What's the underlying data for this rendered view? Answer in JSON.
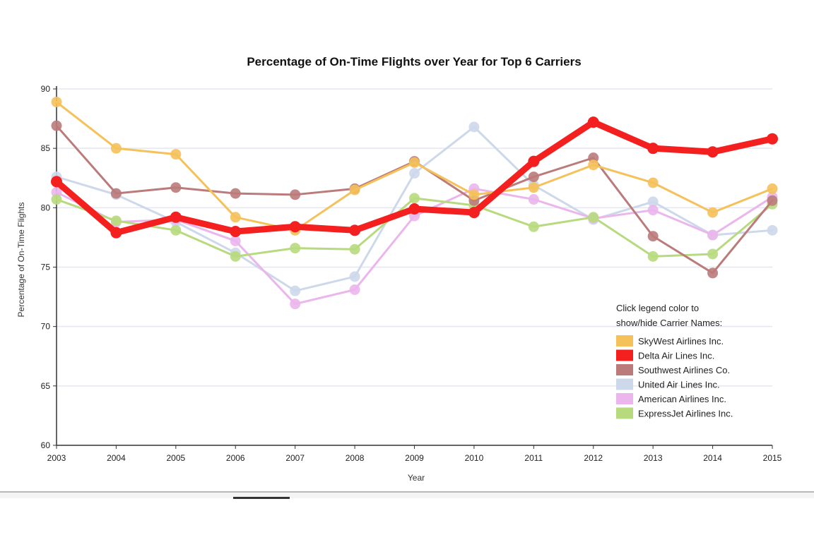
{
  "chart_data": {
    "type": "line",
    "title": "Percentage of On-Time Flights over Year for Top 6 Carriers",
    "xlabel": "Year",
    "ylabel": "Percentage of On-Time Flights",
    "x": [
      2003,
      2004,
      2005,
      2006,
      2007,
      2008,
      2009,
      2010,
      2011,
      2012,
      2013,
      2014,
      2015
    ],
    "x_tick_labels": [
      "2003",
      "2004",
      "2005",
      "2006",
      "2007",
      "2008",
      "2009",
      "2010",
      "2011",
      "2012",
      "2013",
      "2014",
      "2015"
    ],
    "ylim": [
      60,
      90
    ],
    "y_ticks": [
      60,
      65,
      70,
      75,
      80,
      85,
      90
    ],
    "y_tick_labels": [
      "60",
      "65",
      "70",
      "75",
      "80",
      "85",
      "90"
    ],
    "grid": true,
    "legend_position": "bottom-right",
    "legend_title_line1": "Click legend color to",
    "legend_title_line2": "show/hide Carrier Names:",
    "series": [
      {
        "name": "United Air Lines Inc.",
        "color": "#cdd8ea",
        "emphasis": false,
        "values": [
          82.6,
          81.1,
          78.8,
          76.2,
          73.0,
          74.2,
          82.9,
          86.8,
          81.9,
          79.0,
          80.5,
          77.7,
          78.1
        ]
      },
      {
        "name": "American Airlines Inc.",
        "color": "#eab6ec",
        "emphasis": false,
        "values": [
          81.3,
          78.8,
          79.0,
          77.2,
          71.9,
          73.1,
          79.3,
          81.6,
          80.7,
          79.1,
          79.8,
          77.7,
          80.9
        ]
      },
      {
        "name": "ExpressJet Airlines Inc.",
        "color": "#b8da7e",
        "emphasis": false,
        "values": [
          80.7,
          78.9,
          78.1,
          75.9,
          76.6,
          76.5,
          80.8,
          80.2,
          78.4,
          79.2,
          75.9,
          76.1,
          80.3
        ]
      },
      {
        "name": "Southwest Airlines Co.",
        "color": "#bb7b7b",
        "emphasis": false,
        "values": [
          86.9,
          81.2,
          81.7,
          81.2,
          81.1,
          81.6,
          83.9,
          80.6,
          82.6,
          84.2,
          77.6,
          74.5,
          80.6
        ]
      },
      {
        "name": "SkyWest Airlines Inc.",
        "color": "#f5c15a",
        "emphasis": false,
        "values": [
          88.9,
          85.0,
          84.5,
          79.2,
          78.1,
          81.5,
          83.8,
          81.1,
          81.7,
          83.6,
          82.1,
          79.6,
          81.6
        ]
      },
      {
        "name": "Delta Air Lines Inc.",
        "color": "#f41f1f",
        "emphasis": true,
        "values": [
          82.2,
          77.9,
          79.2,
          78.0,
          78.4,
          78.1,
          79.9,
          79.6,
          83.9,
          87.2,
          85.0,
          84.7,
          85.8
        ]
      }
    ],
    "legend_order": [
      "SkyWest Airlines Inc.",
      "Delta Air Lines Inc.",
      "Southwest Airlines Co.",
      "United Air Lines Inc.",
      "American Airlines Inc.",
      "ExpressJet Airlines Inc."
    ]
  }
}
